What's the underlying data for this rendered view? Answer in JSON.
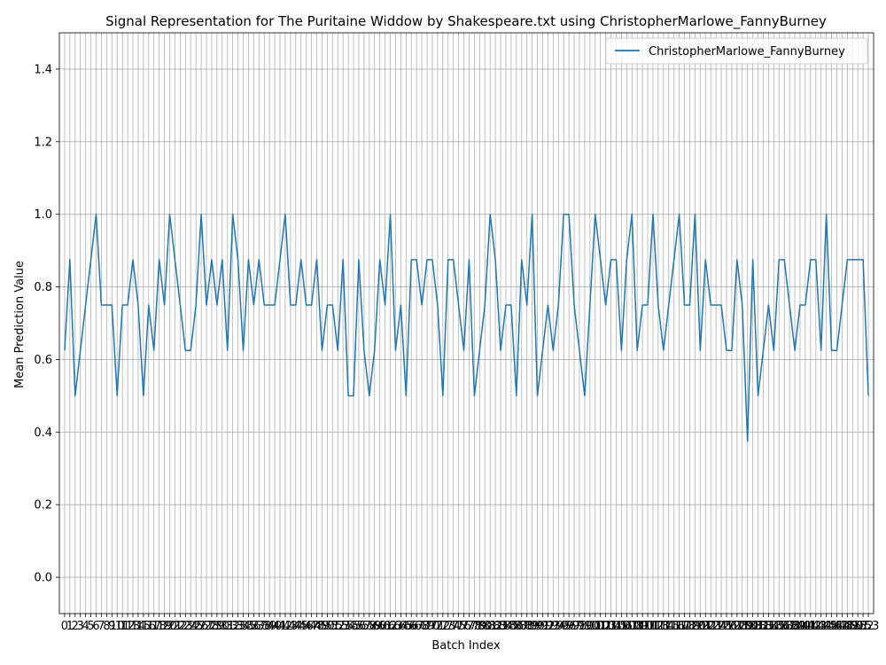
{
  "chart_data": {
    "type": "line",
    "title": "Signal Representation for The Puritaine Widdow by Shakespeare.txt using ChristopherMarlowe_FannyBurney",
    "xlabel": "Batch Index",
    "ylabel": "Mean Prediction Value",
    "ylim": [
      -0.1,
      1.5
    ],
    "xlim": [
      -1,
      154
    ],
    "y_ticks": [
      "0.0",
      "0.2",
      "0.4",
      "0.6",
      "0.8",
      "1.0",
      "1.2",
      "1.4"
    ],
    "grid": true,
    "legend_position": "top-right",
    "series": [
      {
        "name": "ChristopherMarlowe_FannyBurney",
        "color": "#1f77b4",
        "values": [
          0.625,
          0.875,
          0.5,
          0.625,
          0.75,
          0.875,
          1.0,
          0.75,
          0.75,
          0.75,
          0.5,
          0.75,
          0.75,
          0.875,
          0.75,
          0.5,
          0.75,
          0.625,
          0.875,
          0.75,
          1.0,
          0.875,
          0.75,
          0.625,
          0.625,
          0.75,
          1.0,
          0.75,
          0.875,
          0.75,
          0.875,
          0.625,
          1.0,
          0.875,
          0.625,
          0.875,
          0.75,
          0.875,
          0.75,
          0.75,
          0.75,
          0.875,
          1.0,
          0.75,
          0.75,
          0.875,
          0.75,
          0.75,
          0.875,
          0.625,
          0.75,
          0.75,
          0.625,
          0.875,
          0.5,
          0.5,
          0.875,
          0.625,
          0.5,
          0.625,
          0.875,
          0.75,
          1.0,
          0.625,
          0.75,
          0.5,
          0.875,
          0.875,
          0.75,
          0.875,
          0.875,
          0.75,
          0.5,
          0.875,
          0.875,
          0.75,
          0.625,
          0.875,
          0.5,
          0.625,
          0.75,
          1.0,
          0.875,
          0.625,
          0.75,
          0.75,
          0.5,
          0.875,
          0.75,
          1.0,
          0.5,
          0.625,
          0.75,
          0.625,
          0.75,
          1.0,
          1.0,
          0.75,
          0.625,
          0.5,
          0.75,
          1.0,
          0.875,
          0.75,
          0.875,
          0.875,
          0.625,
          0.875,
          1.0,
          0.625,
          0.75,
          0.75,
          1.0,
          0.75,
          0.625,
          0.75,
          0.875,
          1.0,
          0.75,
          0.75,
          1.0,
          0.625,
          0.875,
          0.75,
          0.75,
          0.75,
          0.625,
          0.625,
          0.875,
          0.75,
          0.375,
          0.875,
          0.5,
          0.625,
          0.75,
          0.625,
          0.875,
          0.875,
          0.75,
          0.625,
          0.75,
          0.75,
          0.875,
          0.875,
          0.625,
          1.0,
          0.625,
          0.625,
          0.75,
          0.875,
          0.875,
          0.875,
          0.875,
          0.5
        ]
      }
    ]
  }
}
